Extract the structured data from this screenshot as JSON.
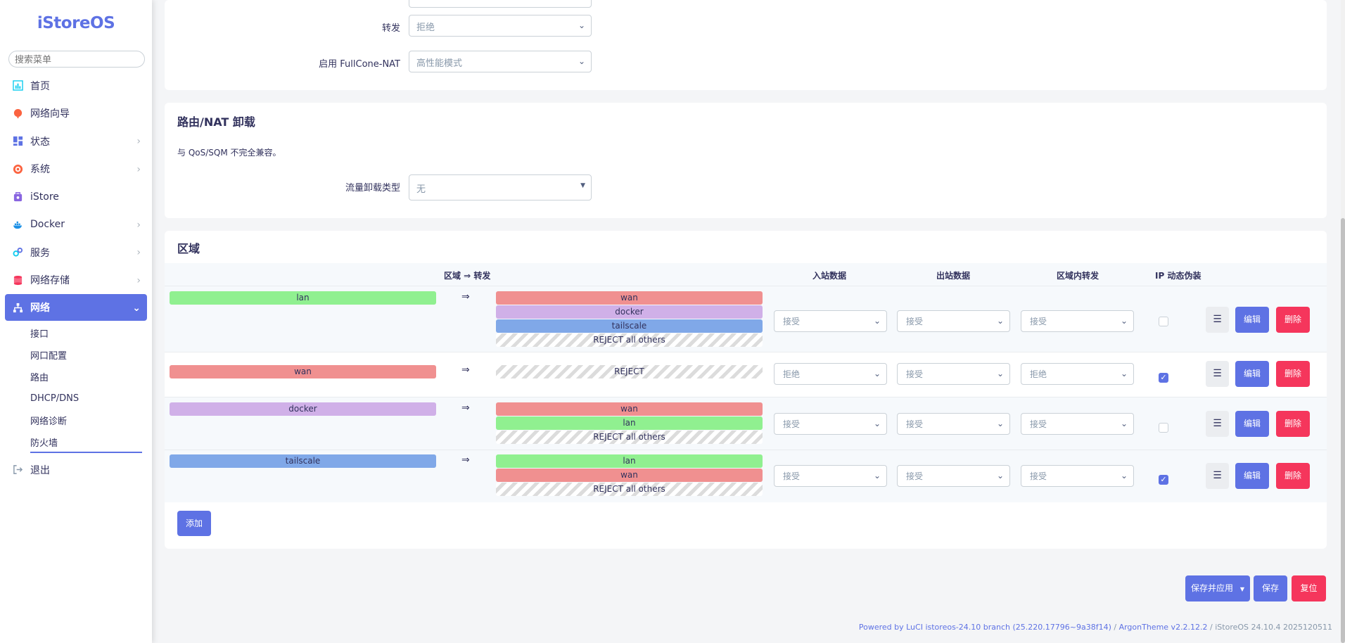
{
  "brand": "iStoreOS",
  "search": {
    "placeholder": "搜索菜单"
  },
  "nav": [
    {
      "label": "首页",
      "icon": "dashboard-icon",
      "chevron": false
    },
    {
      "label": "网络向导",
      "icon": "globe-icon",
      "chevron": false
    },
    {
      "label": "状态",
      "icon": "grid-icon",
      "chevron": true
    },
    {
      "label": "系统",
      "icon": "gear-icon",
      "chevron": true
    },
    {
      "label": "iStore",
      "icon": "store-icon",
      "chevron": false
    },
    {
      "label": "Docker",
      "icon": "docker-icon",
      "chevron": true
    },
    {
      "label": "服务",
      "icon": "services-icon",
      "chevron": true
    },
    {
      "label": "网络存储",
      "icon": "database-icon",
      "chevron": true
    },
    {
      "label": "网络",
      "icon": "network-icon",
      "chevron": true
    }
  ],
  "network_sub": [
    "接口",
    "网口配置",
    "路由",
    "DHCP/DNS",
    "网络诊断",
    "防火墙"
  ],
  "logout": "退出",
  "general": {
    "forward_label": "转发",
    "forward_value": "拒绝",
    "fullcone_label": "启用 FullCone-NAT",
    "fullcone_value": "高性能模式"
  },
  "offload": {
    "title": "路由/NAT 卸载",
    "note": "与 QoS/SQM 不完全兼容。",
    "type_label": "流量卸载类型",
    "type_value": "无"
  },
  "zones": {
    "title": "区域",
    "headers": {
      "zone_forward": "区域 ⇒ 转发",
      "input": "入站数据",
      "output": "出站数据",
      "intra": "区域内转发",
      "masq": "IP 动态伪装"
    },
    "arrow": "⇒",
    "edit_label": "编辑",
    "delete_label": "删除",
    "drag_glyph": "☰",
    "rows": [
      {
        "zone": "lan",
        "targets": [
          "wan",
          "docker",
          "tailscale",
          "REJECT all others"
        ],
        "input": "接受",
        "output": "接受",
        "forward": "接受",
        "masq": false
      },
      {
        "zone": "wan",
        "targets": [
          "REJECT"
        ],
        "input": "拒绝",
        "output": "接受",
        "forward": "拒绝",
        "masq": true
      },
      {
        "zone": "docker",
        "targets": [
          "wan",
          "lan",
          "REJECT all others"
        ],
        "input": "接受",
        "output": "接受",
        "forward": "接受",
        "masq": false
      },
      {
        "zone": "tailscale",
        "targets": [
          "lan",
          "wan",
          "REJECT all others"
        ],
        "input": "接受",
        "output": "接受",
        "forward": "接受",
        "masq": true
      }
    ],
    "add_label": "添加"
  },
  "actions": {
    "save_apply": "保存并应用",
    "save": "保存",
    "reset": "复位"
  },
  "footer": {
    "luci": "Powered by LuCI istoreos-24.10 branch (25.220.17796~9a38f14)",
    "sep1": " / ",
    "theme": "ArgonTheme v2.2.12.2",
    "sep2": " / ",
    "os": "iStoreOS 24.10.4 2025120511"
  },
  "colors": {
    "accent": "#5e72e4",
    "danger": "#f5365c",
    "lan": "#90f090",
    "wan": "#f09090",
    "docker": "#d0b0e8",
    "tailscale": "#80a8e8"
  }
}
